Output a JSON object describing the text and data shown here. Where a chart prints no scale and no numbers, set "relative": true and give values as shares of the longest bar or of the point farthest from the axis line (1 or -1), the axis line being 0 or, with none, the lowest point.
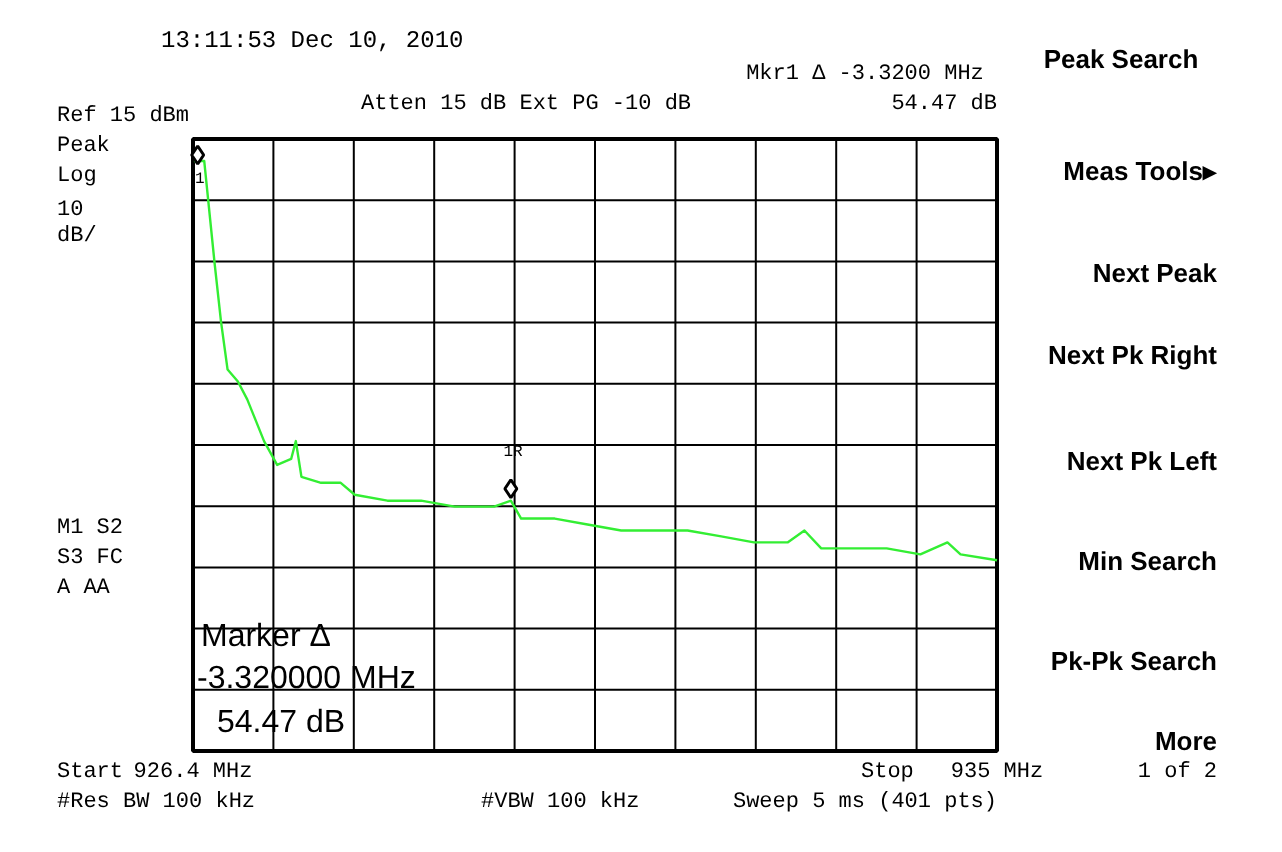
{
  "chart_data": {
    "type": "line",
    "relative": true,
    "series": [
      {
        "color": "#33ee33",
        "x": [
          926.41,
          926.52,
          926.63,
          926.7,
          926.77,
          926.88,
          926.98,
          927.16,
          927.3,
          927.45,
          927.5,
          927.56,
          927.77,
          927.98,
          928.13,
          928.48,
          928.84,
          929.2,
          929.48,
          929.62,
          929.8,
          929.91,
          930.27,
          930.62,
          930.98,
          931.34,
          931.69,
          932.05,
          932.4,
          932.76,
          932.94,
          933.12,
          933.47,
          933.82,
          934.18,
          934.47,
          934.61,
          935.0
        ],
        "values": [
          0.99,
          0.99,
          0.82,
          0.72,
          0.64,
          0.62,
          0.59,
          0.52,
          0.48,
          0.49,
          0.52,
          0.46,
          0.45,
          0.45,
          0.43,
          0.42,
          0.42,
          0.41,
          0.41,
          0.41,
          0.42,
          0.39,
          0.39,
          0.38,
          0.37,
          0.37,
          0.37,
          0.36,
          0.35,
          0.35,
          0.37,
          0.34,
          0.34,
          0.34,
          0.33,
          0.35,
          0.33,
          0.32
        ]
      },
      {
        "type": "scatter",
        "marker": "diamond",
        "color": "#000000",
        "x": [
          926.45,
          929.8
        ],
        "values": [
          1.0,
          0.44
        ]
      }
    ],
    "xlim": [
      926.4,
      935.0
    ],
    "xticks": [
      {
        "value": 926.4,
        "label": "926.4 MHz"
      },
      {
        "value": 927.26,
        "label": null
      },
      {
        "value": 928.12,
        "label": null
      },
      {
        "value": 928.98,
        "label": null
      },
      {
        "value": 929.84,
        "label": null
      },
      {
        "value": 930.7,
        "label": null
      },
      {
        "value": 931.56,
        "label": null
      },
      {
        "value": 932.42,
        "label": null
      },
      {
        "value": 933.28,
        "label": null
      },
      {
        "value": 934.14,
        "label": null
      },
      {
        "value": 935.0,
        "label": "935 MHz"
      }
    ],
    "tick_labels": "x",
    "grid": true,
    "line_style": "solid",
    "annotations": [
      "13:11:53  Dec 10, 2010",
      "Atten 15 dB  Ext PG -10 dB",
      "Mkr1 Δ  -3.3200 MHz",
      "54.47 dB",
      "Peak",
      "Log",
      "10",
      "dB/",
      "M1 S2",
      "S3 FC",
      "A  AA",
      "Marker Δ",
      "-3.320000 MHz",
      "54.47 dB",
      "#Res BW 100 kHz",
      "#VBW 100 kHz",
      "Sweep 5 ms (401 pts)",
      "Peak Search",
      "Meas Tools▸",
      "Next Peak",
      "Next Pk Right",
      "Next Pk Left",
      "Min Search",
      "Pk-Pk Search",
      "More",
      "1 of 2",
      "Ref 15 dBm",
      "Start",
      "Stop",
      "1",
      "1R"
    ]
  }
}
